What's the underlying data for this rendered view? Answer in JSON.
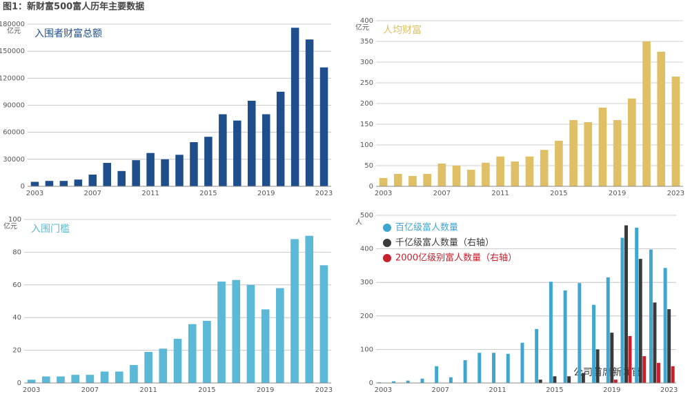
{
  "title": "图1：新财富500富人历年主要数据",
  "watermark": "公司首席新闻官",
  "chart_data": [
    {
      "type": "bar",
      "title": "入围者财富总额",
      "y_label": "亿元",
      "color": "#1f4e8c",
      "categories": [
        "2003",
        null,
        null,
        null,
        "2007",
        null,
        null,
        null,
        "2011",
        null,
        null,
        null,
        "2015",
        null,
        null,
        null,
        "2019",
        null,
        null,
        null,
        "2023"
      ],
      "values": [
        5000,
        6000,
        6000,
        7500,
        13000,
        26000,
        17000,
        29000,
        37000,
        30000,
        35000,
        49000,
        55000,
        80000,
        73000,
        95000,
        80000,
        105000,
        176000,
        163000,
        132000
      ],
      "ylim": [
        0,
        180000
      ],
      "yticks": [
        0,
        30000,
        60000,
        90000,
        120000,
        150000,
        180000
      ],
      "grid": true
    },
    {
      "type": "bar",
      "title": "人均财富",
      "y_label": "亿元",
      "color": "#e0c066",
      "categories": [
        "2003",
        null,
        null,
        null,
        "2007",
        null,
        null,
        null,
        "2011",
        null,
        null,
        null,
        "2015",
        null,
        null,
        null,
        "2019",
        null,
        null,
        null,
        "2023"
      ],
      "values": [
        20,
        30,
        25,
        30,
        55,
        50,
        40,
        57,
        72,
        60,
        72,
        88,
        110,
        160,
        155,
        190,
        160,
        212,
        350,
        325,
        265
      ],
      "ylim": [
        0,
        400
      ],
      "yticks": [
        0,
        50,
        100,
        150,
        200,
        250,
        300,
        350,
        400
      ],
      "grid": true
    },
    {
      "type": "bar",
      "title": "入围门槛",
      "y_label": "亿元",
      "color": "#5bb8d6",
      "categories": [
        "2003",
        null,
        null,
        null,
        "2007",
        null,
        null,
        null,
        "2011",
        null,
        null,
        null,
        "2015",
        null,
        null,
        null,
        "2019",
        null,
        null,
        null,
        "2023"
      ],
      "values": [
        2,
        4,
        4,
        5,
        5,
        7,
        7,
        11,
        19,
        21,
        27,
        36,
        38,
        62,
        63,
        60,
        45,
        58,
        88,
        90,
        72
      ],
      "ylim": [
        0,
        100
      ],
      "yticks": [
        0,
        20,
        40,
        60,
        80,
        100
      ],
      "grid": true
    },
    {
      "type": "bar",
      "y_label": "人",
      "categories": [
        "2003",
        null,
        null,
        null,
        "2007",
        null,
        null,
        null,
        "2011",
        null,
        null,
        null,
        "2015",
        null,
        null,
        null,
        "2019",
        null,
        null,
        null,
        "2023"
      ],
      "series": [
        {
          "name": "百亿级富人数量",
          "color": "#3fa6cf",
          "values": [
            2,
            5,
            7,
            13,
            50,
            17,
            68,
            90,
            90,
            87,
            120,
            161,
            302,
            276,
            298,
            233,
            315,
            433,
            463,
            398,
            343
          ]
        },
        {
          "name": "千亿级富人数量（右轴）",
          "color": "#3a3a3a",
          "axis": "y2",
          "values": [
            0,
            0,
            0,
            0,
            0,
            0,
            0,
            0,
            0,
            0,
            0,
            1,
            2,
            2,
            3,
            10,
            15,
            47,
            37,
            24,
            22
          ]
        },
        {
          "name": "2000亿级别富人数量（右轴）",
          "color": "#c8202c",
          "axis": "y2",
          "values": [
            0,
            0,
            0,
            0,
            0,
            0,
            0,
            0,
            0,
            0,
            0,
            0,
            0,
            0,
            0,
            0,
            1,
            14,
            8,
            6,
            5
          ]
        }
      ],
      "ylim": [
        0,
        500
      ],
      "yticks": [
        0,
        100,
        200,
        300,
        400,
        500
      ],
      "y2lim": [
        0,
        50
      ],
      "grid": true
    }
  ]
}
